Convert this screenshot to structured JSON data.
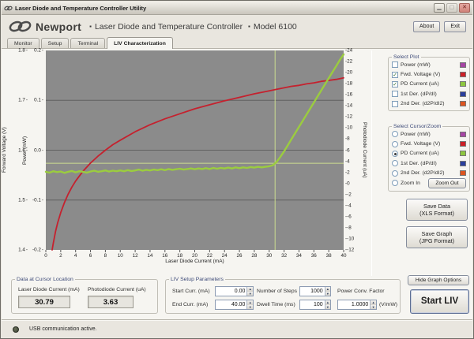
{
  "window": {
    "title": "Laser Diode and Temperature Controller Utility"
  },
  "header": {
    "brand": "Newport",
    "bullet": "▪",
    "title": "Laser Diode and Temperature Controller",
    "model": "Model 6100",
    "about_label": "About",
    "exit_label": "Exit"
  },
  "tabs": [
    {
      "label": "Monitor",
      "active": false
    },
    {
      "label": "Setup",
      "active": false
    },
    {
      "label": "Terminal",
      "active": false
    },
    {
      "label": "LIV Characterization",
      "active": true
    }
  ],
  "chart_data": {
    "type": "line",
    "xlabel": "Laser Diode Current (mA)",
    "xlim": [
      0,
      40
    ],
    "x_ticks": [
      0,
      2,
      4,
      6,
      8,
      10,
      12,
      14,
      16,
      18,
      20,
      22,
      24,
      26,
      28,
      30,
      32,
      34,
      36,
      38,
      40
    ],
    "axes": {
      "forward_voltage": {
        "label": "Forward Voltage (V)",
        "lim": [
          1.4,
          1.8
        ],
        "ticks": [
          1.8,
          1.7,
          1.6,
          1.5,
          1.4
        ]
      },
      "power": {
        "label": "Power (mW)",
        "lim": [
          -0.2,
          0.2
        ],
        "ticks": [
          0.2,
          0.1,
          0,
          -0.1,
          -0.2
        ]
      },
      "photodiode": {
        "label": "Photodiode Current (uA)",
        "lim": [
          -12,
          24
        ],
        "ticks": [
          24,
          22,
          20,
          18,
          16,
          14,
          12,
          10,
          8,
          6,
          4,
          2,
          0,
          -2,
          -4,
          -6,
          -8,
          -10,
          -12
        ]
      }
    },
    "grid_power": [
      0.1,
      0,
      -0.1
    ],
    "grid_color": "#616161",
    "plot_bg": "#8b8b8b",
    "cursor": {
      "x_ma": 30.79,
      "y_ua": 3.63,
      "color": "#ccdc8f"
    },
    "series": [
      {
        "name": "Fwd. Voltage (V)",
        "axis": "forward_voltage",
        "color": "#c5212e",
        "stroke_width": 1.8,
        "x": [
          0.85,
          1,
          1.3,
          1.6,
          2,
          2.5,
          3,
          3.5,
          4,
          5,
          6,
          7,
          8,
          9,
          10,
          12,
          14,
          16,
          18,
          20,
          22,
          24,
          26,
          28,
          30,
          31,
          32,
          33,
          34,
          35,
          36,
          37,
          38,
          39,
          40
        ],
        "y": [
          1.4,
          1.413,
          1.437,
          1.455,
          1.475,
          1.495,
          1.512,
          1.526,
          1.538,
          1.558,
          1.574,
          1.588,
          1.6,
          1.611,
          1.62,
          1.637,
          1.651,
          1.663,
          1.673,
          1.683,
          1.691,
          1.699,
          1.706,
          1.713,
          1.719,
          1.722,
          1.725,
          1.728,
          1.73,
          1.733,
          1.735,
          1.738,
          1.74,
          1.742,
          1.745
        ]
      },
      {
        "name": "PD Current (uA)",
        "axis": "photodiode",
        "color": "#9bcc3f",
        "stroke_width": 2.4,
        "x_start": 0,
        "x_step": 0.5,
        "y": [
          2.1,
          1.95,
          2.2,
          2.05,
          2.15,
          1.9,
          2.1,
          2.25,
          2.0,
          2.2,
          2.1,
          1.95,
          2.15,
          2.3,
          2.1,
          2.2,
          2.35,
          2.15,
          2.3,
          2.2,
          2.35,
          2.2,
          2.4,
          2.25,
          2.35,
          2.5,
          2.3,
          2.45,
          2.35,
          2.5,
          2.4,
          2.55,
          2.4,
          2.6,
          2.45,
          2.55,
          2.65,
          2.5,
          2.6,
          2.7,
          2.55,
          2.7,
          2.6,
          2.75,
          2.6,
          2.8,
          2.65,
          2.8,
          2.7,
          2.85,
          2.7,
          2.9,
          2.75,
          2.9,
          2.8,
          2.95,
          2.85,
          3.0,
          2.9,
          3.0,
          3.1,
          3.3,
          3.9,
          4.8,
          5.8,
          6.9,
          8.0,
          9.1,
          10.2,
          11.3,
          12.4,
          13.5,
          14.6,
          15.7,
          16.8,
          17.9,
          19.0,
          20.1,
          21.2,
          22.3,
          23.3
        ]
      }
    ]
  },
  "select_plot": {
    "title": "Select Plot",
    "items": [
      {
        "label": "Power (mW)",
        "color": "#a545a3",
        "checked": false
      },
      {
        "label": "Fwd. Voltage (V)",
        "color": "#cc2027",
        "checked": true
      },
      {
        "label": "PD Current (uA)",
        "color": "#8dc63f",
        "checked": true
      },
      {
        "label": "1st Der. (dP/dI)",
        "color": "#2b3f9c",
        "checked": false
      },
      {
        "label": "2nd Der. (d2P/dI2)",
        "color": "#dc5420",
        "checked": false
      }
    ]
  },
  "select_cursor": {
    "title": "Select Cursor/Zoom",
    "items": [
      {
        "label": "Power (mW)",
        "color": "#a545a3",
        "selected": false
      },
      {
        "label": "Fwd. Voltage (V)",
        "color": "#cc2027",
        "selected": false
      },
      {
        "label": "PD Current (uA)",
        "color": "#8dc63f",
        "selected": true
      },
      {
        "label": "1st Der. (dP/dI)",
        "color": "#2b3f9c",
        "selected": false
      },
      {
        "label": "2nd Der. (d2P/dI2)",
        "color": "#dc5420",
        "selected": false
      }
    ],
    "zoom_in": {
      "label": "Zoom In",
      "selected": false
    },
    "zoom_out_label": "Zoom Out"
  },
  "buttons": {
    "save_data_line1": "Save Data",
    "save_data_line2": "(XLS Format)",
    "save_graph_line1": "Save Graph",
    "save_graph_line2": "(JPG Format)",
    "hide_options": "Hide Graph Options",
    "start_liv": "Start LIV"
  },
  "cursor_panel": {
    "title": "Data at Cursor Location",
    "fields": [
      {
        "label": "Laser Diode Current (mA)",
        "value": "30.79"
      },
      {
        "label": "Photodiode Current (uA)",
        "value": "3.63"
      }
    ]
  },
  "liv_setup": {
    "title": "LIV Setup Parameters",
    "fields": [
      {
        "label": "Start Curr. (mA)",
        "value": "0.00"
      },
      {
        "label": "End Curr. (mA)",
        "value": "40.00"
      },
      {
        "label": "Number of Steps",
        "value": "1000"
      },
      {
        "label": "Dwell Time (ms)",
        "value": "100"
      },
      {
        "label": "Power Conv. Factor",
        "value": "1.0000",
        "suffix": "(V/mW)"
      }
    ]
  },
  "status_bar": {
    "text": "USB communication active.",
    "led_color": "#3f4637"
  }
}
